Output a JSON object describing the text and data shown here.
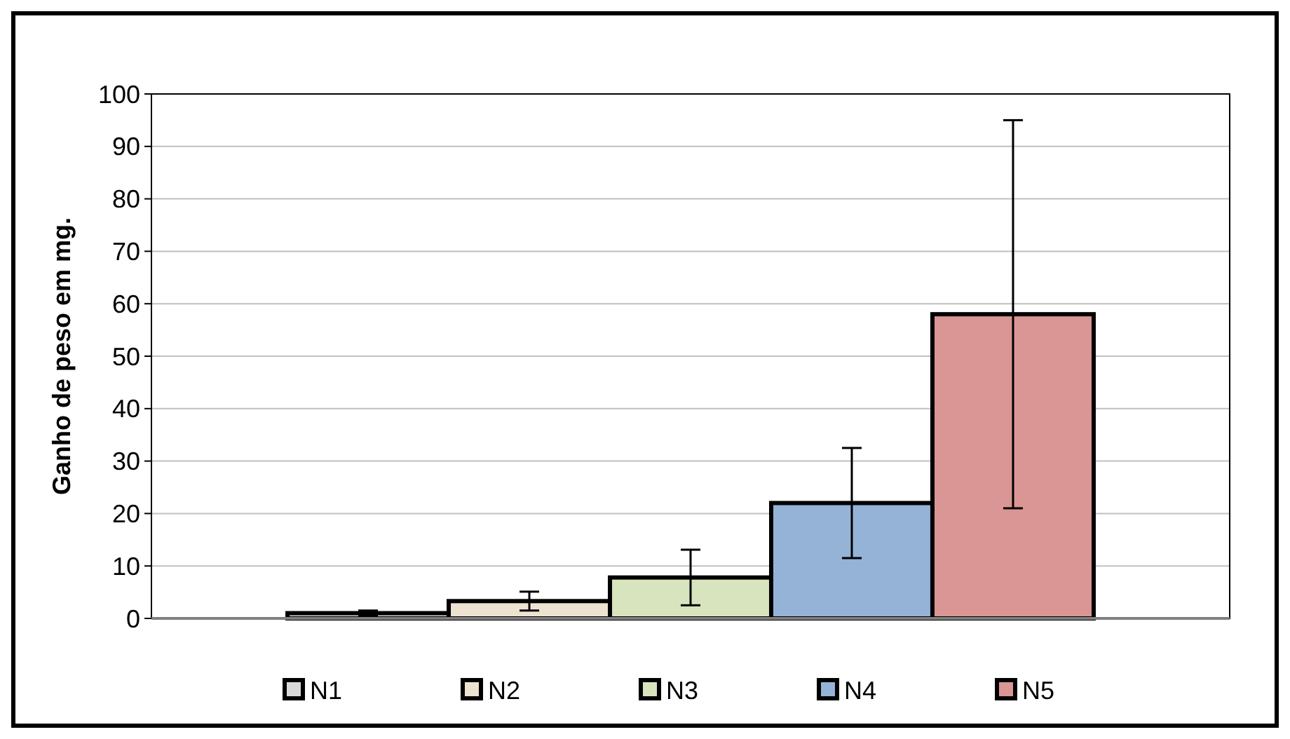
{
  "chart_data": {
    "type": "bar",
    "ylabel": "Ganho de peso em mg.",
    "categories": [
      null
    ],
    "series": [
      {
        "name": "N1",
        "color": "#d9d9d9",
        "values": [
          1
        ],
        "errors": [
          0.5
        ]
      },
      {
        "name": "N2",
        "color": "#ede3d0",
        "values": [
          3.3
        ],
        "errors": [
          1.8
        ]
      },
      {
        "name": "N3",
        "color": "#d7e4bd",
        "values": [
          7.8
        ],
        "errors": [
          5.3
        ]
      },
      {
        "name": "N4",
        "color": "#95b3d7",
        "values": [
          22
        ],
        "errors": [
          10.5
        ]
      },
      {
        "name": "N5",
        "color": "#d99694",
        "values": [
          58
        ],
        "errors": [
          37
        ]
      }
    ],
    "ylim": [
      0,
      100
    ],
    "yticks": [
      0,
      10,
      20,
      30,
      40,
      50,
      60,
      70,
      80,
      90,
      100
    ],
    "grid": "y",
    "legend": "bottom"
  }
}
